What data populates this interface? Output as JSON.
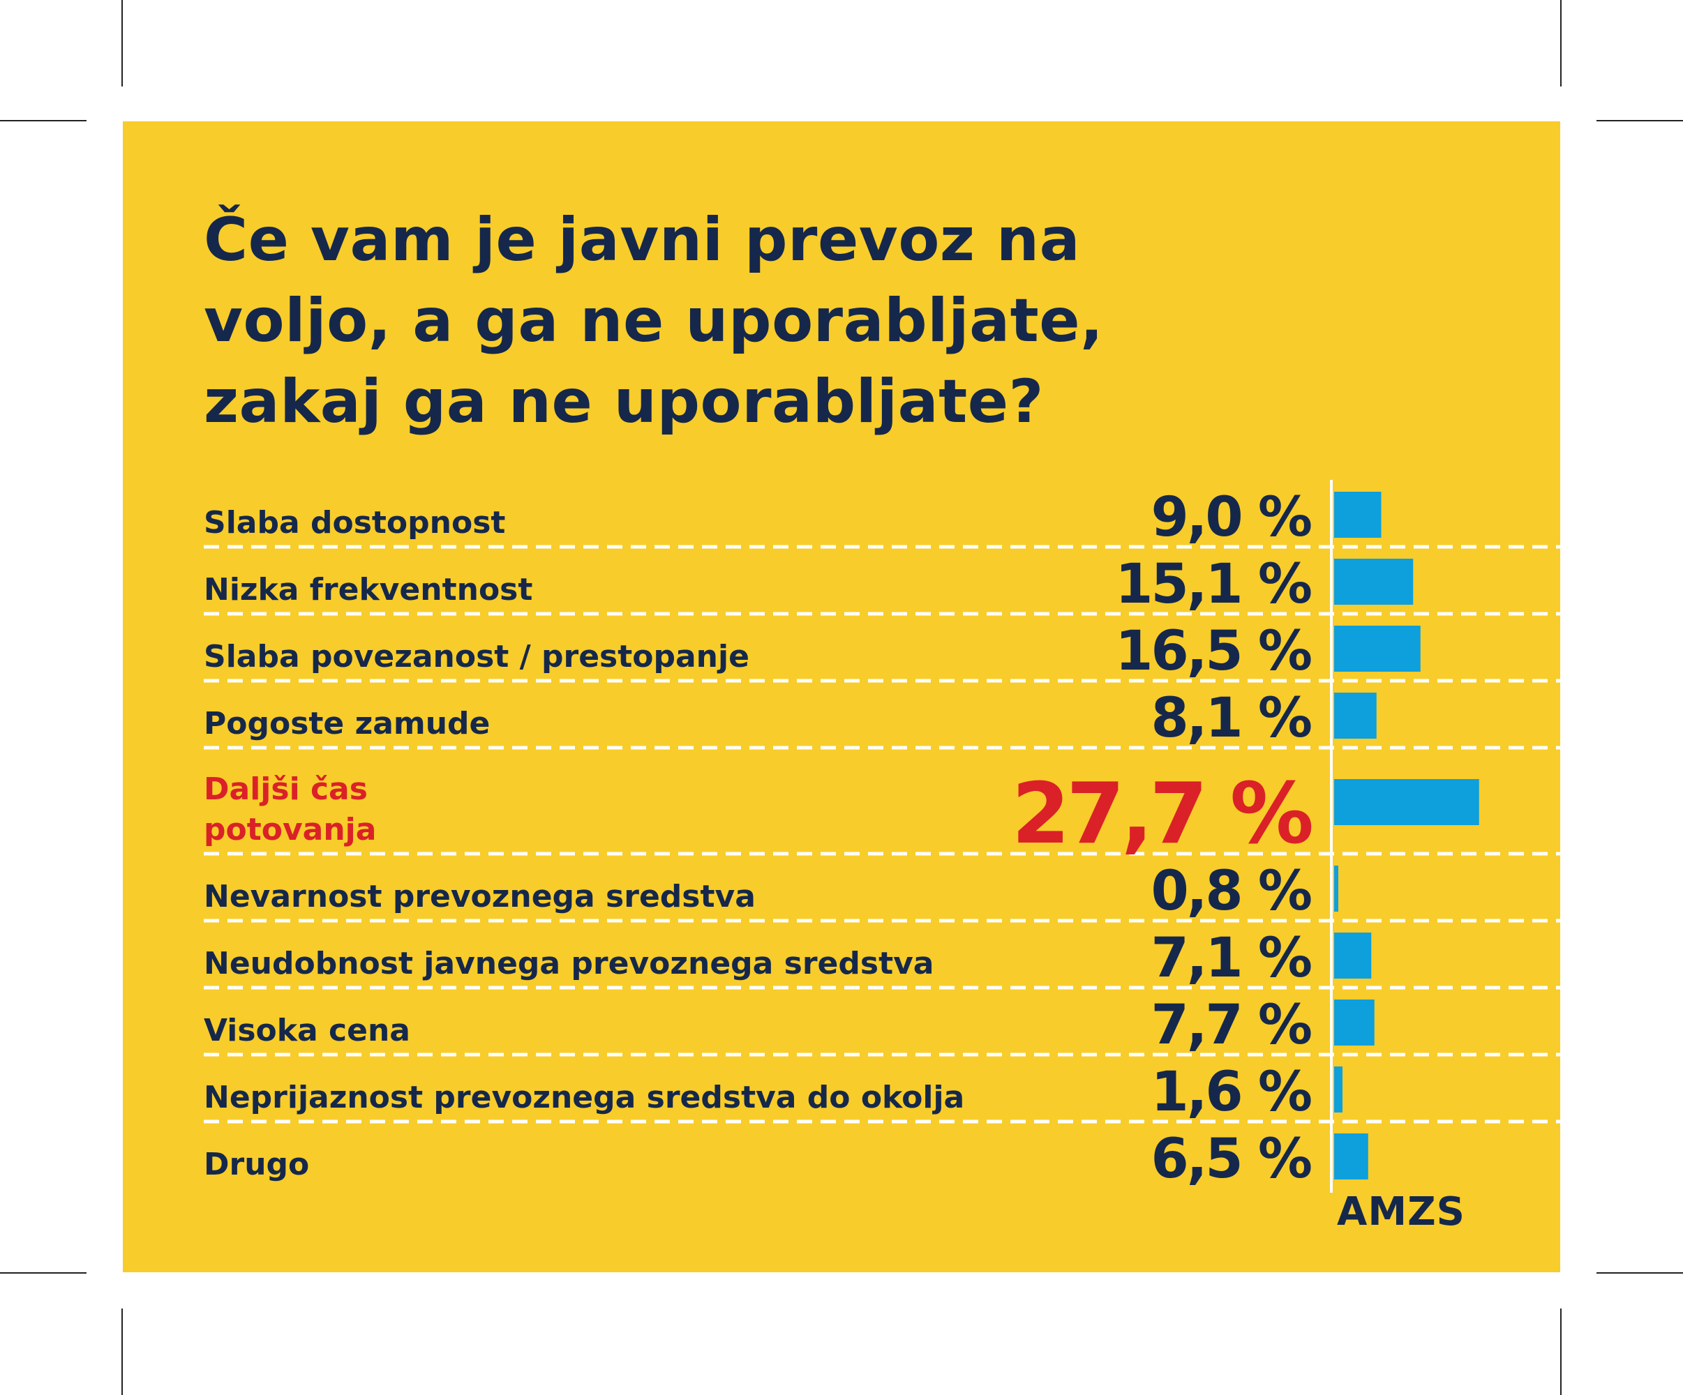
{
  "title": "Če vam je javni prevoz na\nvoljo, a ga ne uporabljate,\nzakaj ga ne uporabljate?",
  "brand": "AMZS",
  "colors": {
    "background": "#F8CC2A",
    "text": "#15284B",
    "highlight": "#DA2128",
    "bar": "#0E9FDD",
    "divider": "#FFFFFF"
  },
  "chart_data": {
    "type": "bar",
    "orientation": "horizontal",
    "categories": [
      "Slaba dostopnost",
      "Nizka frekventnost",
      "Slaba povezanost / prestopanje",
      "Pogoste zamude",
      "Daljši čas\npotovanja",
      "Nevarnost prevoznega sredstva",
      "Neudobnost javnega prevoznega sredstva",
      "Visoka cena",
      "Neprijaznost prevoznega sredstva do okolja",
      "Drugo"
    ],
    "values": [
      9.0,
      15.1,
      16.5,
      8.1,
      27.7,
      0.8,
      7.1,
      7.7,
      1.6,
      6.5
    ],
    "value_labels": [
      "9,0 %",
      "15,1 %",
      "16,5 %",
      "8,1 %",
      "27,7 %",
      "0,8 %",
      "7,1 %",
      "7,7 %",
      "1,6 %",
      "6,5 %"
    ],
    "highlight_index": 4,
    "unit": "%",
    "grid": false,
    "legend": "none"
  }
}
